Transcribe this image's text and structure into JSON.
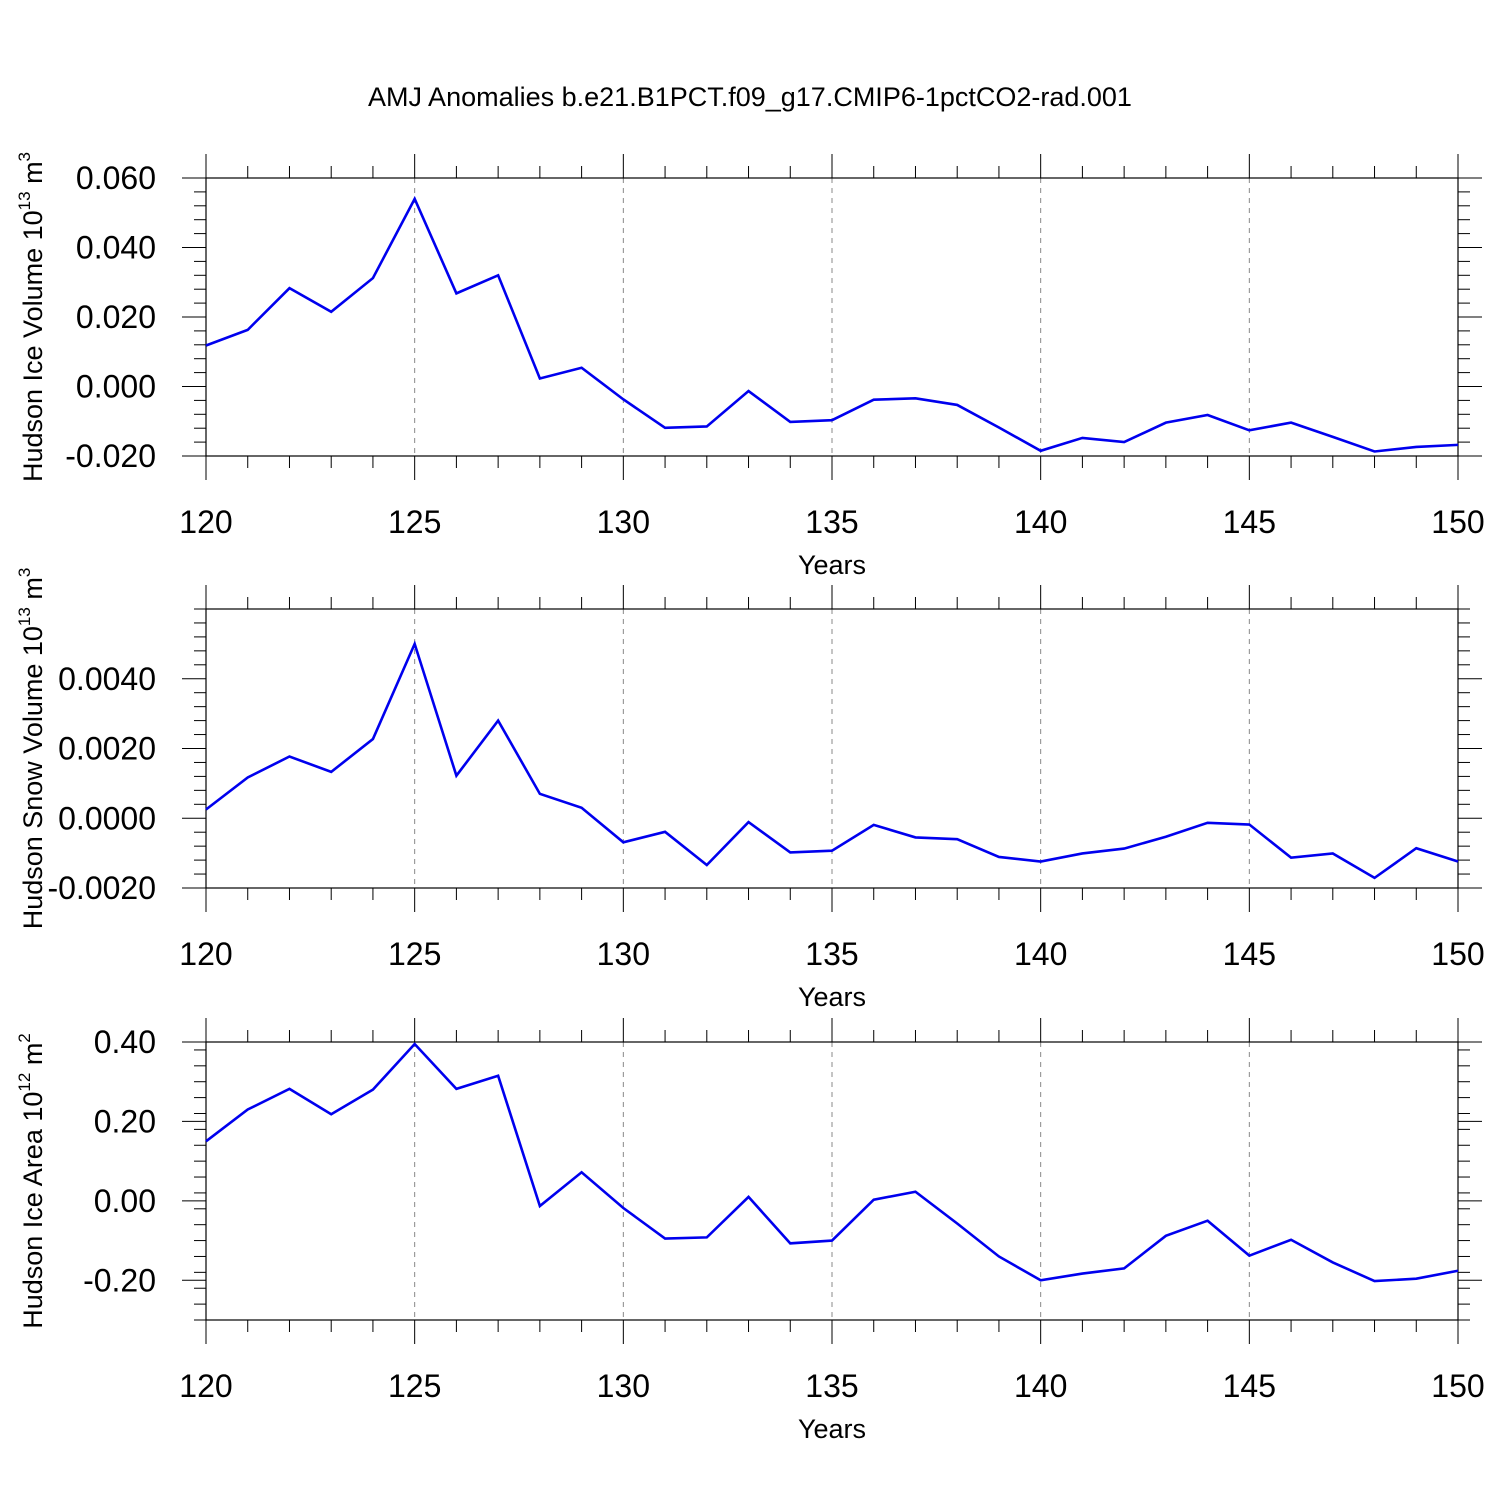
{
  "title": "AMJ Anomalies b.e21.B1PCT.f09_g17.CMIP6-1pctCO2-rad.001",
  "chart_data": [
    {
      "type": "line",
      "xlabel": "Years",
      "ylabel": {
        "main": "Hudson Ice Volume 10",
        "sup": "13",
        "unit": " m",
        "unit_sup": "3"
      },
      "xlim": [
        120,
        150
      ],
      "ylim": [
        -0.02,
        0.06
      ],
      "xticks": [
        120,
        125,
        130,
        135,
        140,
        145,
        150
      ],
      "xtick_labels": [
        "120",
        "125",
        "130",
        "135",
        "140",
        "145",
        "150"
      ],
      "yticks": [
        -0.02,
        0,
        0.02,
        0.04,
        0.06
      ],
      "ytick_labels": [
        "-0.020",
        "0.000",
        "0.020",
        "0.040",
        "0.060"
      ],
      "grid_x": [
        125,
        130,
        135,
        140,
        145
      ],
      "line_color": "#0000ee",
      "x": [
        120,
        121,
        122,
        123,
        124,
        125,
        126,
        127,
        128,
        129,
        130,
        131,
        132,
        133,
        134,
        135,
        136,
        137,
        138,
        139,
        140,
        141,
        142,
        143,
        144,
        145,
        146,
        147,
        148,
        149,
        150
      ],
      "values": [
        0.0118,
        0.0163,
        0.0283,
        0.0215,
        0.0312,
        0.054,
        0.0268,
        0.032,
        0.0023,
        0.0054,
        -0.0037,
        -0.0119,
        -0.0115,
        -0.0013,
        -0.0102,
        -0.0097,
        -0.0038,
        -0.0034,
        -0.0053,
        -0.0118,
        -0.0185,
        -0.0148,
        -0.016,
        -0.0104,
        -0.0082,
        -0.0126,
        -0.0104,
        -0.0145,
        -0.0187,
        -0.0174,
        -0.0168
      ]
    },
    {
      "type": "line",
      "xlabel": "Years",
      "ylabel": {
        "main": "Hudson Snow Volume 10",
        "sup": "13",
        "unit": " m",
        "unit_sup": "3"
      },
      "xlim": [
        120,
        150
      ],
      "ylim": [
        -0.002,
        0.006
      ],
      "xticks": [
        120,
        125,
        130,
        135,
        140,
        145,
        150
      ],
      "xtick_labels": [
        "120",
        "125",
        "130",
        "135",
        "140",
        "145",
        "150"
      ],
      "yticks": [
        -0.002,
        0,
        0.002,
        0.004
      ],
      "ytick_labels": [
        "-0.0020",
        "0.0000",
        "0.0020",
        "0.0040"
      ],
      "grid_x": [
        125,
        130,
        135,
        140,
        145
      ],
      "line_color": "#0000ee",
      "x": [
        120,
        121,
        122,
        123,
        124,
        125,
        126,
        127,
        128,
        129,
        130,
        131,
        132,
        133,
        134,
        135,
        136,
        137,
        138,
        139,
        140,
        141,
        142,
        143,
        144,
        145,
        146,
        147,
        148,
        149,
        150
      ],
      "values": [
        0.00025,
        0.00117,
        0.00177,
        0.00133,
        0.00227,
        0.005,
        0.00122,
        0.0028,
        0.0007,
        0.0003,
        -0.00069,
        -0.00039,
        -0.00134,
        -0.00011,
        -0.00098,
        -0.00093,
        -0.00019,
        -0.00055,
        -0.0006,
        -0.00111,
        -0.00124,
        -0.00101,
        -0.00087,
        -0.00053,
        -0.00013,
        -0.00018,
        -0.00113,
        -0.00101,
        -0.00171,
        -0.00086,
        -0.00124
      ]
    },
    {
      "type": "line",
      "xlabel": "Years",
      "ylabel": {
        "main": "Hudson Ice Area 10",
        "sup": "12",
        "unit": " m",
        "unit_sup": "2"
      },
      "xlim": [
        120,
        150
      ],
      "ylim": [
        -0.3,
        0.4
      ],
      "xticks": [
        120,
        125,
        130,
        135,
        140,
        145,
        150
      ],
      "xtick_labels": [
        "120",
        "125",
        "130",
        "135",
        "140",
        "145",
        "150"
      ],
      "yticks": [
        -0.2,
        0,
        0.2,
        0.4
      ],
      "ytick_labels": [
        "-0.20",
        "0.00",
        "0.20",
        "0.40"
      ],
      "grid_x": [
        125,
        130,
        135,
        140,
        145
      ],
      "line_color": "#0000ee",
      "x": [
        120,
        121,
        122,
        123,
        124,
        125,
        126,
        127,
        128,
        129,
        130,
        131,
        132,
        133,
        134,
        135,
        136,
        137,
        138,
        139,
        140,
        141,
        142,
        143,
        144,
        145,
        146,
        147,
        148,
        149,
        150
      ],
      "values": [
        0.15,
        0.23,
        0.282,
        0.218,
        0.28,
        0.395,
        0.282,
        0.315,
        -0.013,
        0.072,
        -0.018,
        -0.095,
        -0.092,
        0.01,
        -0.107,
        -0.1,
        0.003,
        0.023,
        -0.057,
        -0.14,
        -0.2,
        -0.183,
        -0.17,
        -0.088,
        -0.05,
        -0.138,
        -0.098,
        -0.155,
        -0.202,
        -0.196,
        -0.176
      ]
    }
  ]
}
